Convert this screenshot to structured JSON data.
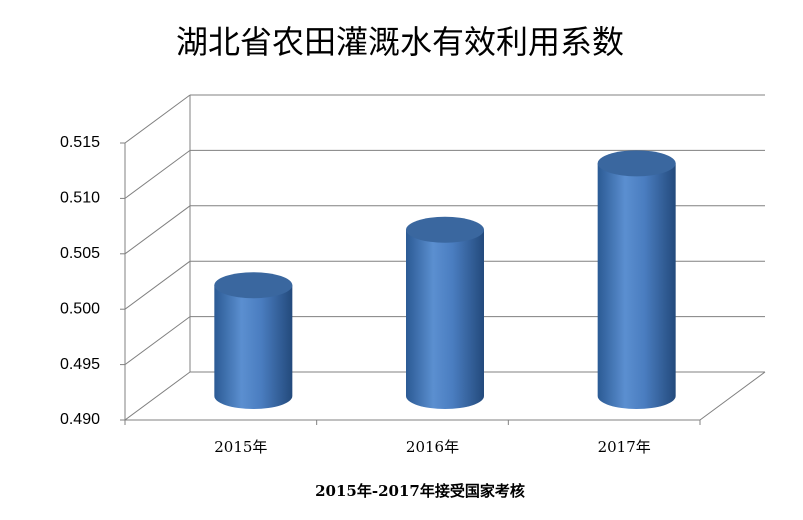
{
  "chart_data": {
    "type": "cylinder",
    "title": "湖北省农田灌溉水有效利用系数",
    "x_label": "2015年-2017年接受国家考核",
    "categories": [
      "2015年",
      "2016年",
      "2017年"
    ],
    "values": [
      0.5,
      0.505,
      0.511
    ],
    "color": "#4f81bd",
    "ylim": [
      0.49,
      0.515
    ],
    "yticks": [
      {
        "value": 0.49,
        "label": "0.490"
      },
      0.495,
      {
        "value": 0.5,
        "label": "0.500"
      },
      0.505,
      {
        "value": 0.51,
        "label": "0.510"
      },
      0.515
    ],
    "grid": true
  }
}
